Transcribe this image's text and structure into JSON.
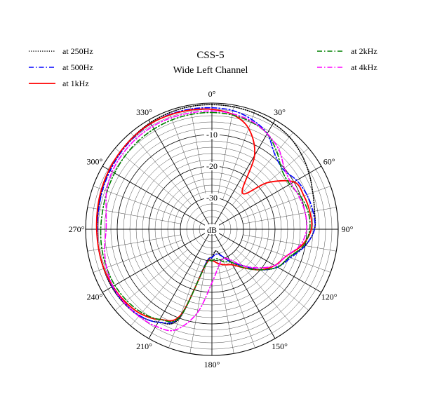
{
  "chart_data": {
    "type": "polar-line",
    "title": "CSS-5",
    "subtitle": "Wide Left Channel",
    "radial_unit_label": "dB",
    "radial_range": [
      -40,
      0
    ],
    "radial_major_ticks": [
      -30,
      -20,
      -10
    ],
    "radial_minor_step": 2,
    "angular_tick_labels": [
      "0°",
      "30°",
      "60°",
      "90°",
      "120°",
      "150°",
      "180°",
      "210°",
      "240°",
      "270°",
      "300°",
      "330°"
    ],
    "angular_minor_step_deg": 10,
    "grid": true,
    "legend_left": [
      "at 250Hz",
      "at 500Hz",
      "at 1kHz"
    ],
    "legend_right": [
      "at 2kHz",
      "at 4kHz"
    ],
    "angles_deg": [
      0,
      10,
      20,
      30,
      40,
      50,
      60,
      70,
      80,
      90,
      100,
      110,
      120,
      130,
      140,
      150,
      160,
      170,
      180,
      190,
      200,
      210,
      220,
      230,
      240,
      250,
      260,
      270,
      280,
      290,
      300,
      310,
      320,
      330,
      340,
      350
    ],
    "series": [
      {
        "name": "at 250Hz",
        "color": "#000000",
        "style": "dotted",
        "values": [
          -0.5,
          -0.6,
          -0.8,
          -1.2,
          -1.8,
          -3.0,
          -4.5,
          -6.0,
          -7.0,
          -7.5,
          -10.0,
          -14.0,
          -16.0,
          -20.0,
          -25.0,
          -28.0,
          -31.0,
          -33.0,
          -31.0,
          -29.0,
          -10.0,
          -6.0,
          -4.2,
          -3.6,
          -3.4,
          -3.5,
          -3.6,
          -3.7,
          -3.5,
          -3.0,
          -2.5,
          -2.0,
          -1.5,
          -1.0,
          -0.7,
          -0.5
        ]
      },
      {
        "name": "at 500Hz",
        "color": "#0000ff",
        "style": "dashdot",
        "values": [
          -1.5,
          -1.8,
          -3.0,
          -5.0,
          -9.0,
          -10.5,
          -9.0,
          -8.0,
          -7.5,
          -7.5,
          -10.0,
          -13.5,
          -16.0,
          -20.0,
          -25.0,
          -28.0,
          -31.0,
          -32.0,
          -31.0,
          -29.0,
          -10.5,
          -6.0,
          -4.3,
          -3.8,
          -3.6,
          -3.6,
          -3.6,
          -3.7,
          -3.6,
          -3.2,
          -2.8,
          -2.3,
          -1.8,
          -1.4,
          -1.2,
          -1.3
        ]
      },
      {
        "name": "at 1kHz",
        "color": "#ff0000",
        "style": "solid",
        "values": [
          -2.0,
          -3.0,
          -6.0,
          -13.0,
          -25.0,
          -17.0,
          -10.0,
          -9.0,
          -8.5,
          -8.5,
          -11.0,
          -15.0,
          -17.0,
          -20.0,
          -24.0,
          -27.0,
          -28.0,
          -29.0,
          -30.0,
          -28.5,
          -11.0,
          -7.0,
          -5.0,
          -4.2,
          -3.8,
          -3.6,
          -3.6,
          -3.5,
          -3.2,
          -2.8,
          -2.4,
          -2.0,
          -1.6,
          -1.3,
          -1.4,
          -1.6
        ]
      },
      {
        "name": "at 2kHz",
        "color": "#008000",
        "style": "dashdot",
        "values": [
          -3.0,
          -3.2,
          -3.8,
          -5.0,
          -8.0,
          -11.0,
          -11.5,
          -10.0,
          -9.0,
          -9.0,
          -10.5,
          -14.0,
          -16.0,
          -20.0,
          -24.0,
          -28.0,
          -29.0,
          -30.5,
          -30.0,
          -28.5,
          -10.5,
          -7.0,
          -5.5,
          -4.8,
          -4.5,
          -4.5,
          -4.6,
          -4.8,
          -4.9,
          -4.7,
          -4.4,
          -4.0,
          -3.6,
          -3.3,
          -3.1,
          -3.0
        ]
      },
      {
        "name": "at 4kHz",
        "color": "#ff00ff",
        "style": "dashdot",
        "values": [
          -2.5,
          -2.8,
          -3.5,
          -5.0,
          -7.0,
          -10.0,
          -11.0,
          -10.5,
          -10.0,
          -10.0,
          -11.5,
          -15.0,
          -17.0,
          -21.0,
          -25.0,
          -29.0,
          -30.0,
          -28.0,
          -23.0,
          -13.0,
          -6.0,
          -4.5,
          -4.0,
          -3.8,
          -3.8,
          -4.5,
          -5.5,
          -6.5,
          -6.0,
          -4.5,
          -3.5,
          -3.0,
          -2.6,
          -2.4,
          -2.4,
          -2.5
        ]
      }
    ]
  }
}
